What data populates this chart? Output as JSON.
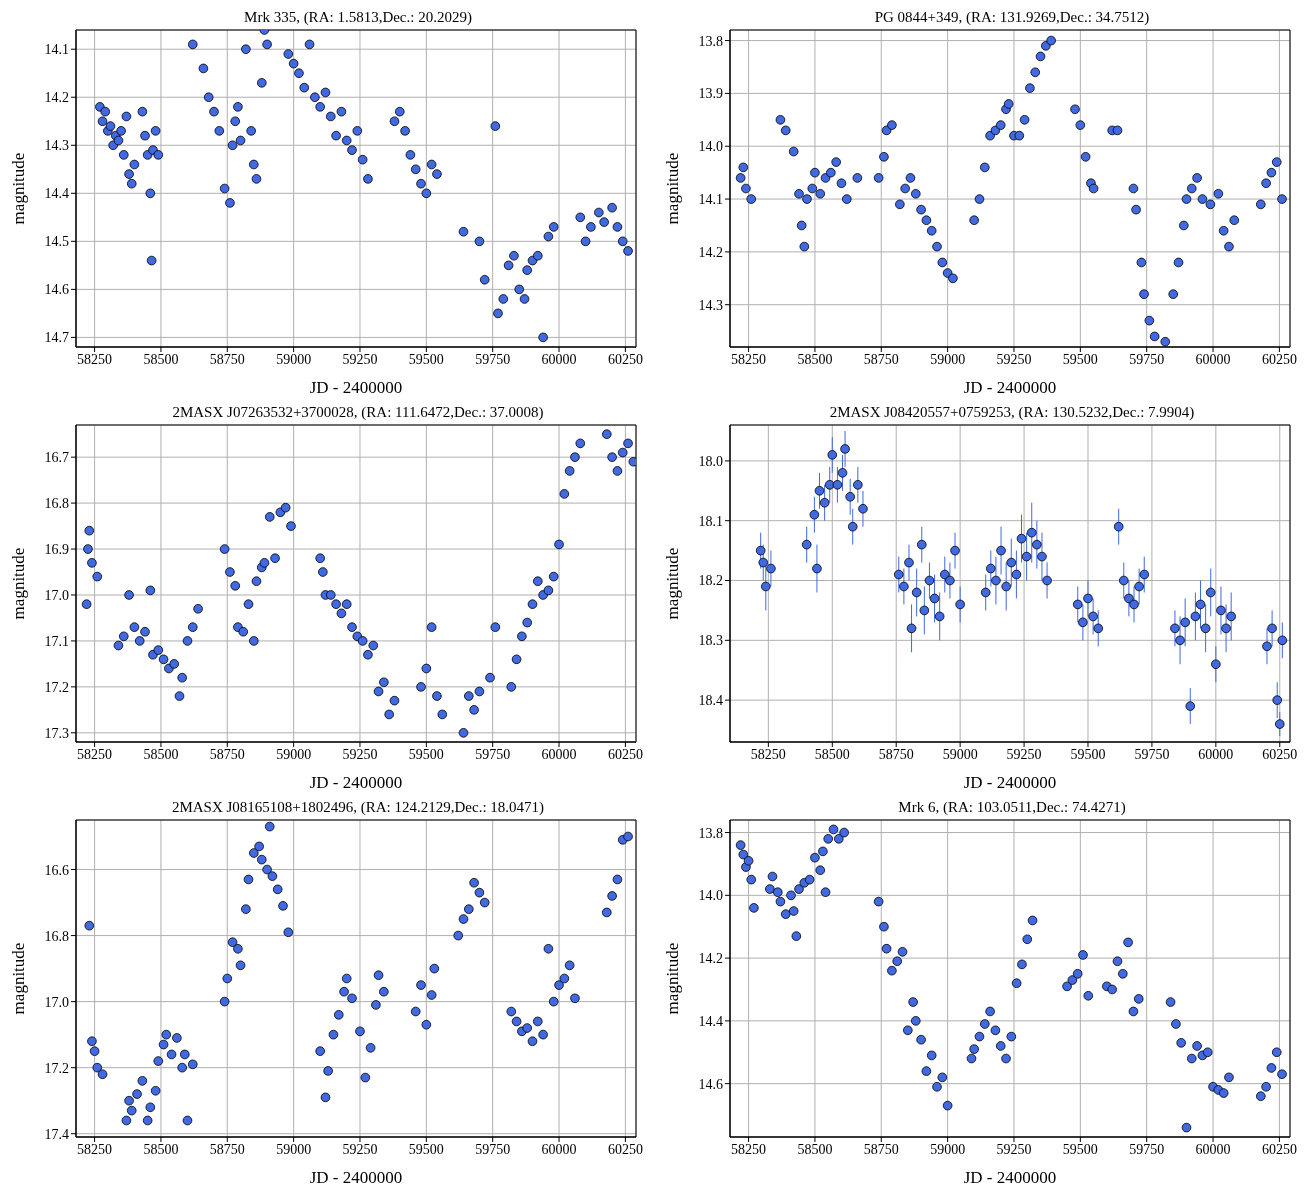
{
  "chart_data": [
    {
      "type": "scatter",
      "title": "Mrk 335, (RA: 1.5813,Dec.: 20.2029)",
      "xlabel": "JD - 2400000",
      "ylabel": "magnitude",
      "color": "#4169e1",
      "marker": "circle",
      "grid": true,
      "xlim": [
        58180,
        60290
      ],
      "xticks": [
        58250,
        58500,
        58750,
        59000,
        59250,
        59500,
        59750,
        60000,
        60250
      ],
      "ylim": [
        14.72,
        14.06
      ],
      "yticks": [
        14.1,
        14.2,
        14.3,
        14.4,
        14.5,
        14.6,
        14.7
      ],
      "x": [
        58270,
        58280,
        58290,
        58300,
        58310,
        58320,
        58330,
        58340,
        58350,
        58360,
        58370,
        58380,
        58390,
        58400,
        58430,
        58440,
        58450,
        58460,
        58465,
        58470,
        58480,
        58490,
        58620,
        58660,
        58680,
        58700,
        58720,
        58740,
        58760,
        58770,
        58780,
        58790,
        58800,
        58820,
        58840,
        58850,
        58860,
        58880,
        58890,
        58900,
        58980,
        59000,
        59020,
        59040,
        59060,
        59080,
        59100,
        59120,
        59140,
        59160,
        59180,
        59200,
        59220,
        59240,
        59260,
        59280,
        59380,
        59400,
        59420,
        59440,
        59460,
        59480,
        59500,
        59520,
        59540,
        59640,
        59700,
        59720,
        59760,
        59770,
        59790,
        59810,
        59830,
        59850,
        59870,
        59880,
        59900,
        59920,
        59940,
        59960,
        59980,
        60080,
        60100,
        60120,
        60150,
        60170,
        60200,
        60220,
        60240,
        60260
      ],
      "values": [
        14.22,
        14.25,
        14.23,
        14.27,
        14.26,
        14.3,
        14.28,
        14.29,
        14.27,
        14.32,
        14.24,
        14.36,
        14.38,
        14.34,
        14.23,
        14.28,
        14.32,
        14.4,
        14.54,
        14.31,
        14.27,
        14.32,
        14.09,
        14.14,
        14.2,
        14.23,
        14.27,
        14.39,
        14.42,
        14.3,
        14.25,
        14.22,
        14.29,
        14.1,
        14.27,
        14.34,
        14.37,
        14.17,
        14.06,
        14.09,
        14.11,
        14.13,
        14.15,
        14.18,
        14.09,
        14.2,
        14.22,
        14.19,
        14.24,
        14.28,
        14.23,
        14.29,
        14.31,
        14.27,
        14.33,
        14.37,
        14.25,
        14.23,
        14.27,
        14.32,
        14.35,
        14.38,
        14.4,
        14.34,
        14.36,
        14.48,
        14.5,
        14.58,
        14.26,
        14.65,
        14.62,
        14.55,
        14.53,
        14.6,
        14.62,
        14.56,
        14.54,
        14.53,
        14.7,
        14.49,
        14.47,
        14.45,
        14.5,
        14.47,
        14.44,
        14.46,
        14.43,
        14.47,
        14.5,
        14.52
      ]
    },
    {
      "type": "scatter",
      "title": "PG 0844+349, (RA: 131.9269,Dec.: 34.7512)",
      "xlabel": "JD - 2400000",
      "ylabel": "magnitude",
      "color": "#4169e1",
      "marker": "circle",
      "grid": true,
      "xlim": [
        58180,
        60290
      ],
      "xticks": [
        58250,
        58500,
        58750,
        59000,
        59250,
        59500,
        59750,
        60000,
        60250
      ],
      "ylim": [
        14.38,
        13.78
      ],
      "yticks": [
        13.8,
        13.9,
        {
          "value": 14,
          "label": "14.0"
        },
        14.1,
        14.2,
        14.3
      ],
      "x": [
        58220,
        58230,
        58240,
        58260,
        58370,
        58390,
        58420,
        58440,
        58450,
        58460,
        58470,
        58490,
        58500,
        58520,
        58540,
        58560,
        58580,
        58600,
        58620,
        58660,
        58740,
        58760,
        58770,
        58790,
        58820,
        58840,
        58860,
        58880,
        58900,
        58920,
        58940,
        58960,
        58980,
        59000,
        59020,
        59100,
        59120,
        59140,
        59160,
        59180,
        59200,
        59220,
        59230,
        59250,
        59270,
        59290,
        59310,
        59330,
        59350,
        59370,
        59390,
        59480,
        59500,
        59520,
        59540,
        59550,
        59620,
        59640,
        59700,
        59710,
        59730,
        59740,
        59760,
        59780,
        59820,
        59850,
        59870,
        59890,
        59900,
        59920,
        59940,
        59960,
        59990,
        60020,
        60040,
        60060,
        60080,
        60180,
        60200,
        60220,
        60240,
        60260
      ],
      "values": [
        14.06,
        14.04,
        14.08,
        14.1,
        13.95,
        13.97,
        14.01,
        14.09,
        14.15,
        14.19,
        14.1,
        14.08,
        14.05,
        14.09,
        14.06,
        14.05,
        14.03,
        14.07,
        14.1,
        14.06,
        14.06,
        14.02,
        13.97,
        13.96,
        14.11,
        14.08,
        14.06,
        14.09,
        14.12,
        14.14,
        14.16,
        14.19,
        14.22,
        14.24,
        14.25,
        14.14,
        14.1,
        14.04,
        13.98,
        13.97,
        13.96,
        13.93,
        13.92,
        13.98,
        13.98,
        13.95,
        13.89,
        13.86,
        13.83,
        13.81,
        13.8,
        13.93,
        13.96,
        14.02,
        14.07,
        14.08,
        13.97,
        13.97,
        14.08,
        14.12,
        14.22,
        14.28,
        14.33,
        14.36,
        14.37,
        14.28,
        14.22,
        14.15,
        14.1,
        14.08,
        14.06,
        14.1,
        14.11,
        14.09,
        14.16,
        14.19,
        14.14,
        14.11,
        14.07,
        14.05,
        14.03,
        14.1
      ]
    },
    {
      "type": "scatter",
      "title": "2MASX J07263532+3700028, (RA: 111.6472,Dec.: 37.0008)",
      "xlabel": "JD - 2400000",
      "ylabel": "magnitude",
      "color": "#4169e1",
      "marker": "circle",
      "grid": true,
      "xlim": [
        58180,
        60290
      ],
      "xticks": [
        58250,
        58500,
        58750,
        59000,
        59250,
        59500,
        59750,
        60000,
        60250
      ],
      "ylim": [
        17.32,
        16.63
      ],
      "yticks": [
        16.7,
        16.8,
        16.9,
        {
          "value": 17,
          "label": "17.0"
        },
        17.1,
        17.2,
        17.3
      ],
      "x": [
        58220,
        58225,
        58230,
        58240,
        58260,
        58340,
        58360,
        58380,
        58400,
        58420,
        58440,
        58460,
        58470,
        58490,
        58510,
        58530,
        58550,
        58570,
        58580,
        58600,
        58620,
        58640,
        58740,
        58760,
        58780,
        58790,
        58810,
        58830,
        58850,
        58860,
        58880,
        58890,
        58910,
        58930,
        58950,
        58970,
        58990,
        59100,
        59110,
        59120,
        59140,
        59160,
        59180,
        59200,
        59220,
        59240,
        59260,
        59280,
        59300,
        59320,
        59340,
        59360,
        59380,
        59480,
        59500,
        59520,
        59540,
        59560,
        59640,
        59660,
        59680,
        59700,
        59740,
        59760,
        59820,
        59840,
        59860,
        59880,
        59900,
        59920,
        59940,
        59960,
        59980,
        60000,
        60020,
        60040,
        60060,
        60080,
        60180,
        60200,
        60220,
        60240,
        60260,
        60280
      ],
      "values": [
        17.02,
        16.9,
        16.86,
        16.93,
        16.96,
        17.11,
        17.09,
        17.0,
        17.07,
        17.1,
        17.08,
        16.99,
        17.13,
        17.12,
        17.14,
        17.16,
        17.15,
        17.22,
        17.18,
        17.1,
        17.07,
        17.03,
        16.9,
        16.95,
        16.98,
        17.07,
        17.08,
        17.02,
        17.1,
        16.97,
        16.94,
        16.93,
        16.83,
        16.92,
        16.82,
        16.81,
        16.85,
        16.92,
        16.95,
        17.0,
        17.0,
        17.02,
        17.04,
        17.02,
        17.07,
        17.09,
        17.1,
        17.13,
        17.11,
        17.21,
        17.19,
        17.26,
        17.23,
        17.2,
        17.16,
        17.07,
        17.22,
        17.26,
        17.3,
        17.22,
        17.25,
        17.21,
        17.18,
        17.07,
        17.2,
        17.14,
        17.09,
        17.06,
        17.02,
        16.97,
        17.0,
        16.99,
        16.96,
        16.89,
        16.78,
        16.73,
        16.7,
        16.67,
        16.65,
        16.7,
        16.73,
        16.69,
        16.67,
        16.71
      ]
    },
    {
      "type": "scatter",
      "title": "2MASX J08420557+0759253, (RA: 130.5232,Dec.: 7.9904)",
      "xlabel": "JD - 2400000",
      "ylabel": "magnitude",
      "color": "#4169e1",
      "marker": "circle",
      "grid": true,
      "xlim": [
        58100,
        60290
      ],
      "xticks": [
        58250,
        58500,
        58750,
        59000,
        59250,
        59500,
        59750,
        60000,
        60250
      ],
      "ylim": [
        18.47,
        17.94
      ],
      "yticks": [
        {
          "value": 18,
          "label": "18.0"
        },
        18.1,
        18.2,
        18.3,
        18.4
      ],
      "x": [
        58220,
        58230,
        58240,
        58260,
        58400,
        58430,
        58440,
        58450,
        58470,
        58490,
        58500,
        58520,
        58540,
        58550,
        58570,
        58580,
        58600,
        58620,
        58760,
        58780,
        58800,
        58810,
        58830,
        58850,
        58860,
        58880,
        58900,
        58920,
        58940,
        58960,
        58980,
        59000,
        59100,
        59120,
        59140,
        59160,
        59180,
        59200,
        59220,
        59240,
        59260,
        59280,
        59300,
        59320,
        59340,
        59460,
        59480,
        59500,
        59520,
        59540,
        59620,
        59640,
        59660,
        59680,
        59700,
        59720,
        59840,
        59860,
        59880,
        59900,
        59920,
        59940,
        59960,
        59980,
        60000,
        60020,
        60040,
        60060,
        60200,
        60220,
        60240,
        60250,
        60260
      ],
      "values": [
        18.15,
        18.17,
        18.21,
        18.18,
        18.14,
        18.09,
        18.18,
        18.05,
        18.07,
        18.04,
        17.99,
        18.04,
        18.02,
        17.98,
        18.06,
        18.11,
        18.04,
        18.08,
        18.19,
        18.21,
        18.17,
        18.28,
        18.22,
        18.14,
        18.25,
        18.2,
        18.23,
        18.26,
        18.19,
        18.2,
        18.15,
        18.24,
        18.22,
        18.18,
        18.2,
        18.15,
        18.21,
        18.17,
        18.19,
        18.13,
        18.16,
        18.12,
        18.14,
        18.16,
        18.2,
        18.24,
        18.27,
        18.23,
        18.26,
        18.28,
        18.11,
        18.2,
        18.23,
        18.24,
        18.21,
        18.19,
        18.28,
        18.3,
        18.27,
        18.41,
        18.26,
        18.24,
        18.28,
        18.22,
        18.34,
        18.25,
        18.28,
        18.26,
        18.31,
        18.28,
        18.4,
        18.44,
        18.3
      ],
      "errors": [
        0.03,
        0.03,
        0.04,
        0.03,
        0.03,
        0.03,
        0.04,
        0.03,
        0.03,
        0.03,
        0.03,
        0.03,
        0.03,
        0.03,
        0.03,
        0.03,
        0.03,
        0.03,
        0.03,
        0.03,
        0.03,
        0.04,
        0.04,
        0.03,
        0.04,
        0.03,
        0.04,
        0.04,
        0.03,
        0.03,
        0.03,
        0.03,
        0.03,
        0.03,
        0.04,
        0.04,
        0.04,
        0.04,
        0.04,
        0.04,
        0.04,
        0.05,
        0.04,
        0.04,
        0.03,
        0.03,
        0.03,
        0.03,
        0.03,
        0.03,
        0.03,
        0.03,
        0.03,
        0.03,
        0.03,
        0.03,
        0.03,
        0.04,
        0.04,
        0.03,
        0.04,
        0.04,
        0.04,
        0.04,
        0.03,
        0.04,
        0.04,
        0.04,
        0.03,
        0.03,
        0.03,
        0.02,
        0.03
      ]
    },
    {
      "type": "scatter",
      "title": "2MASX J08165108+1802496, (RA: 124.2129,Dec.: 18.0471)",
      "xlabel": "JD - 2400000",
      "ylabel": "magnitude",
      "color": "#4169e1",
      "marker": "circle",
      "grid": true,
      "xlim": [
        58180,
        60290
      ],
      "xticks": [
        58250,
        58500,
        58750,
        59000,
        59250,
        59500,
        59750,
        60000,
        60250
      ],
      "ylim": [
        17.41,
        16.45
      ],
      "yticks": [
        16.6,
        16.8,
        {
          "value": 17,
          "label": "17.0"
        },
        17.2,
        17.4
      ],
      "x": [
        58230,
        58240,
        58250,
        58260,
        58280,
        58370,
        58380,
        58390,
        58410,
        58430,
        58450,
        58460,
        58480,
        58490,
        58510,
        58520,
        58540,
        58560,
        58580,
        58590,
        58600,
        58620,
        58740,
        58750,
        58770,
        58790,
        58800,
        58820,
        58830,
        58850,
        58870,
        58880,
        58900,
        58910,
        58920,
        58940,
        58960,
        58980,
        59100,
        59120,
        59130,
        59150,
        59170,
        59190,
        59200,
        59220,
        59250,
        59270,
        59290,
        59310,
        59320,
        59340,
        59460,
        59480,
        59500,
        59520,
        59530,
        59620,
        59640,
        59660,
        59680,
        59700,
        59720,
        59820,
        59840,
        59860,
        59880,
        59900,
        59920,
        59940,
        59960,
        59980,
        60000,
        60020,
        60040,
        60060,
        60180,
        60200,
        60220,
        60240,
        60260
      ],
      "values": [
        16.77,
        17.12,
        17.15,
        17.2,
        17.22,
        17.36,
        17.3,
        17.33,
        17.28,
        17.24,
        17.36,
        17.32,
        17.27,
        17.18,
        17.13,
        17.1,
        17.16,
        17.11,
        17.2,
        17.16,
        17.36,
        17.19,
        17.0,
        16.93,
        16.82,
        16.84,
        16.89,
        16.72,
        16.63,
        16.55,
        16.53,
        16.57,
        16.6,
        16.47,
        16.62,
        16.66,
        16.71,
        16.79,
        17.15,
        17.29,
        17.21,
        17.1,
        17.04,
        16.97,
        16.93,
        16.99,
        17.09,
        17.23,
        17.14,
        17.01,
        16.92,
        16.97,
        17.03,
        16.95,
        17.07,
        16.98,
        16.9,
        16.8,
        16.75,
        16.72,
        16.64,
        16.67,
        16.7,
        17.03,
        17.06,
        17.09,
        17.08,
        17.12,
        17.06,
        17.1,
        16.84,
        17.0,
        16.95,
        16.93,
        16.89,
        16.99,
        16.73,
        16.68,
        16.63,
        16.51,
        16.5
      ]
    },
    {
      "type": "scatter",
      "title": "Mrk 6, (RA: 103.0511,Dec.: 74.4271)",
      "xlabel": "JD - 2400000",
      "ylabel": "magnitude",
      "color": "#4169e1",
      "marker": "circle",
      "grid": true,
      "xlim": [
        58180,
        60290
      ],
      "xticks": [
        58250,
        58500,
        58750,
        59000,
        59250,
        59500,
        59750,
        60000,
        60250
      ],
      "ylim": [
        14.77,
        13.76
      ],
      "yticks": [
        13.8,
        {
          "value": 14,
          "label": "14.0"
        },
        14.2,
        14.4,
        14.6
      ],
      "x": [
        58220,
        58230,
        58240,
        58250,
        58260,
        58270,
        58330,
        58340,
        58360,
        58370,
        58390,
        58410,
        58420,
        58430,
        58440,
        58460,
        58480,
        58500,
        58520,
        58530,
        58540,
        58550,
        58570,
        58590,
        58610,
        58740,
        58760,
        58770,
        58790,
        58810,
        58830,
        58850,
        58870,
        58880,
        58900,
        58920,
        58940,
        58960,
        58980,
        59000,
        59090,
        59100,
        59120,
        59140,
        59160,
        59180,
        59200,
        59220,
        59240,
        59260,
        59280,
        59300,
        59320,
        59450,
        59470,
        59490,
        59510,
        59530,
        59600,
        59620,
        59640,
        59660,
        59680,
        59700,
        59720,
        59840,
        59860,
        59880,
        59900,
        59920,
        59940,
        59960,
        59980,
        60000,
        60020,
        60040,
        60060,
        60180,
        60200,
        60220,
        60240,
        60260
      ],
      "values": [
        13.84,
        13.87,
        13.91,
        13.89,
        13.95,
        14.04,
        13.98,
        13.94,
        13.99,
        14.02,
        14.06,
        14.0,
        14.05,
        14.13,
        13.98,
        13.96,
        13.95,
        13.88,
        13.92,
        13.86,
        13.99,
        13.82,
        13.79,
        13.82,
        13.8,
        14.02,
        14.1,
        14.17,
        14.24,
        14.21,
        14.18,
        14.43,
        14.34,
        14.4,
        14.46,
        14.56,
        14.51,
        14.61,
        14.58,
        14.67,
        14.52,
        14.49,
        14.45,
        14.41,
        14.37,
        14.43,
        14.48,
        14.52,
        14.45,
        14.28,
        14.22,
        14.14,
        14.08,
        14.29,
        14.27,
        14.25,
        14.19,
        14.32,
        14.29,
        14.3,
        14.21,
        14.25,
        14.15,
        14.37,
        14.33,
        14.34,
        14.41,
        14.47,
        14.74,
        14.52,
        14.48,
        14.51,
        14.5,
        14.61,
        14.62,
        14.63,
        14.58,
        14.64,
        14.61,
        14.55,
        14.5,
        14.57
      ]
    }
  ]
}
